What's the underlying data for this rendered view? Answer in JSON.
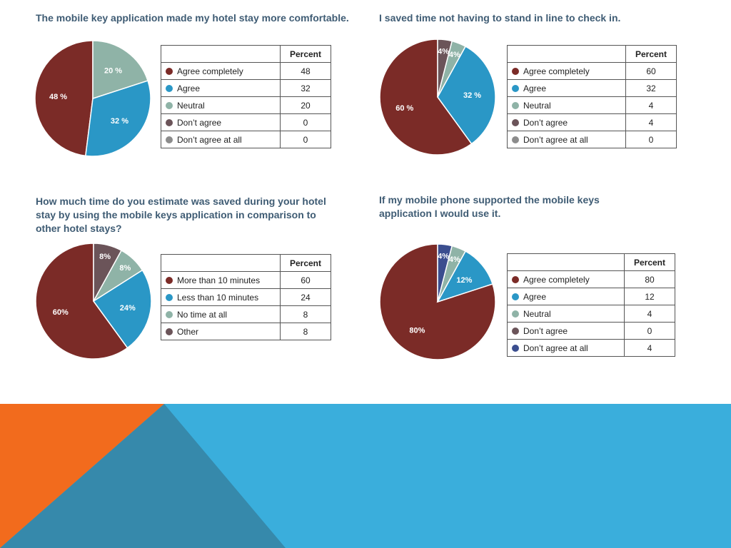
{
  "colors": {
    "title": "#3f5c74",
    "footer_blue": "#3aaedc",
    "footer_teal": "#3689ab",
    "footer_orange": "#f26b1d"
  },
  "chart_data": [
    {
      "type": "pie",
      "title": "The mobile key application made my hotel stay more comfortable.",
      "table_header": "Percent",
      "categories": [
        "Agree completely",
        "Agree",
        "Neutral",
        "Don’t agree",
        "Don’t agree at all"
      ],
      "values": [
        48,
        32,
        20,
        0,
        0
      ],
      "value_labels": [
        "48",
        "32",
        "20",
        "0",
        "0"
      ],
      "slice_labels": [
        "48 %",
        "32 %",
        "20 %",
        "",
        ""
      ],
      "colors": [
        "#7b2b27",
        "#2a97c6",
        "#8fb3a7",
        "#6b5459",
        "#8c8c8c"
      ]
    },
    {
      "type": "pie",
      "title": "I saved time not having to stand in line to check in.",
      "table_header": "Percent",
      "categories": [
        "Agree completely",
        "Agree",
        "Neutral",
        "Don’t agree",
        "Don’t agree at all"
      ],
      "values": [
        60,
        32,
        4,
        4,
        0
      ],
      "value_labels": [
        "60",
        "32",
        "4",
        "4",
        "0"
      ],
      "slice_labels": [
        "60 %",
        "32 %",
        "4%",
        "4%",
        ""
      ],
      "colors": [
        "#7b2b27",
        "#2a97c6",
        "#8fb3a7",
        "#6b5459",
        "#8c8c8c"
      ]
    },
    {
      "type": "pie",
      "title": "How much time do you estimate was saved during your hotel stay by using the mobile keys application in comparison to other hotel stays?",
      "table_header": "Percent",
      "categories": [
        "More than 10 minutes",
        "Less than 10 minutes",
        "No time at all",
        "Other"
      ],
      "values": [
        60,
        24,
        8,
        8
      ],
      "value_labels": [
        "60",
        "24",
        "8",
        "8"
      ],
      "slice_labels": [
        "60%",
        "24%",
        "8%",
        "8%"
      ],
      "colors": [
        "#7b2b27",
        "#2a97c6",
        "#8fb3a7",
        "#6b5459"
      ]
    },
    {
      "type": "pie",
      "title": "If my mobile phone supported the mobile keys application I would use it.",
      "table_header": "Percent",
      "categories": [
        "Agree completely",
        "Agree",
        "Neutral",
        "Don’t agree",
        "Don’t agree at all"
      ],
      "values": [
        80,
        12,
        4,
        0,
        4
      ],
      "value_labels": [
        "80",
        "12",
        "4",
        "0",
        "4"
      ],
      "slice_labels": [
        "80%",
        "12%",
        "4%",
        "",
        "4%"
      ],
      "colors": [
        "#7b2b27",
        "#2a97c6",
        "#8fb3a7",
        "#6b5459",
        "#3b4e8f"
      ]
    }
  ]
}
